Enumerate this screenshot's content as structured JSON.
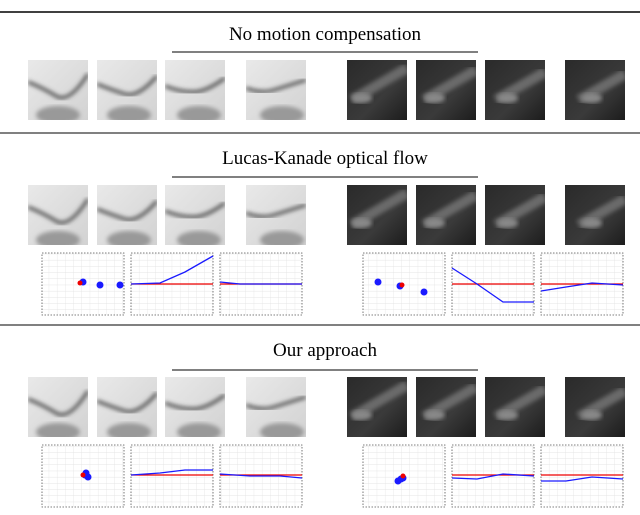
{
  "sections": [
    {
      "title": "No motion compensation"
    },
    {
      "title": "Lucas-Kanade optical flow"
    },
    {
      "title": "Our approach"
    }
  ]
}
